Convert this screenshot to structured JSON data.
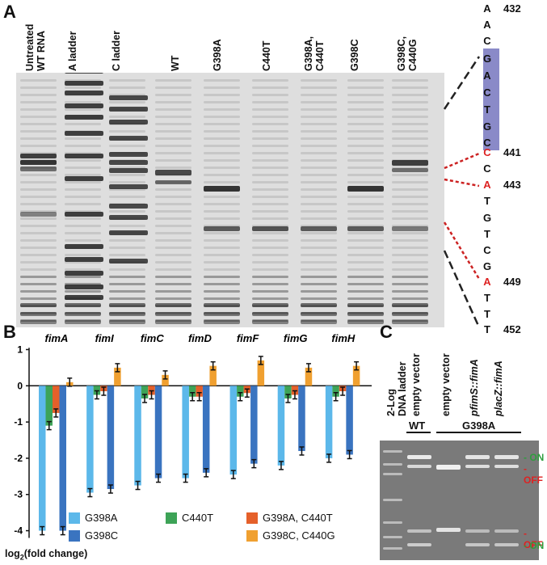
{
  "panelA": {
    "letter": "A",
    "lanes": [
      "Untreated\nWT RNA",
      "A ladder",
      "C ladder",
      "WT",
      "G398A",
      "C440T",
      "G398A,\nC440T",
      "G398C",
      "G398C,\nC440G"
    ],
    "sequence": [
      "A",
      "A",
      "C",
      "G",
      "A",
      "C",
      "T",
      "G",
      "C",
      "C",
      "C",
      "A",
      "T",
      "G",
      "T",
      "C",
      "G",
      "A",
      "T",
      "T",
      "T"
    ],
    "numbers": {
      "432": "432",
      "441": "441",
      "443": "443",
      "449": "449",
      "452": "452"
    }
  },
  "panelB": {
    "letter": "B",
    "ylabel": "log2(fold change)",
    "yticks": [
      "1",
      "0",
      "-1",
      "-2",
      "-3",
      "-4"
    ]
  },
  "panelC": {
    "letter": "C",
    "lanes": [
      "2-Log\nDNA ladder",
      "empty vector",
      "empty vector",
      "pfimS::fimA",
      "placZ::fimA"
    ],
    "group_wt": "WT",
    "group_g398a": "G398A",
    "on": "ON",
    "off": "OFF"
  },
  "chart_data": {
    "type": "bar",
    "categories": [
      "fimA",
      "fimI",
      "fimC",
      "fimD",
      "fimF",
      "fimG",
      "fimH"
    ],
    "ylim": [
      -4.3,
      1.1
    ],
    "series": [
      {
        "name": "G398A",
        "color": "#5cb8ea",
        "values": [
          -4.0,
          -2.95,
          -2.75,
          -2.55,
          -2.45,
          -2.2,
          -2.0
        ]
      },
      {
        "name": "C440T",
        "color": "#3da357",
        "values": [
          -1.1,
          -0.25,
          -0.35,
          -0.3,
          -0.3,
          -0.35,
          -0.3
        ]
      },
      {
        "name": "G398A, C440T",
        "color": "#e5602a",
        "values": [
          -0.75,
          -0.15,
          -0.25,
          -0.3,
          -0.2,
          -0.25,
          -0.15
        ]
      },
      {
        "name": "G398C",
        "color": "#3a74c0",
        "values": [
          -4.0,
          -2.85,
          -2.55,
          -2.4,
          -2.15,
          -1.8,
          -1.9
        ]
      },
      {
        "name": "G398C, C440G",
        "color": "#f0a030",
        "values": [
          0.1,
          0.5,
          0.3,
          0.55,
          0.7,
          0.5,
          0.55
        ]
      }
    ]
  }
}
